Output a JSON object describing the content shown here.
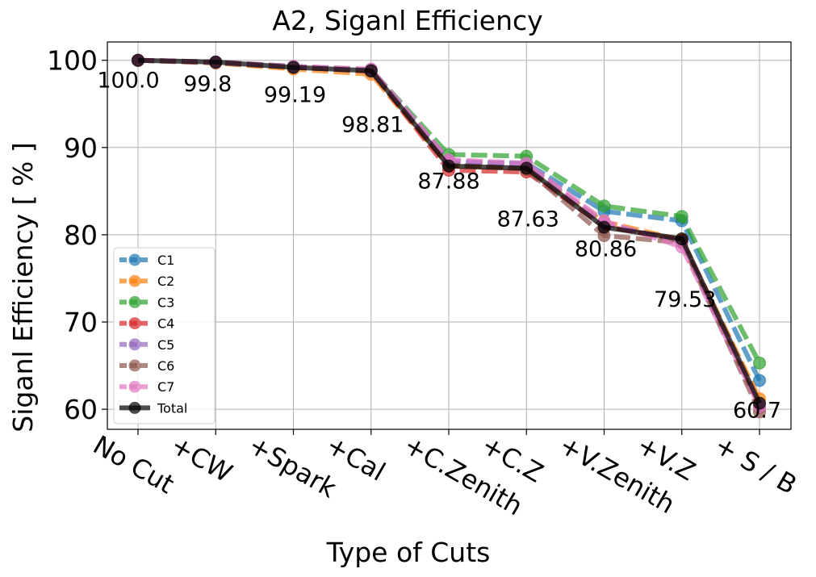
{
  "chart_data": {
    "type": "line",
    "title": "A2, Siganl Efficiency",
    "xlabel": "Type of Cuts",
    "ylabel": "Siganl Efficiency [ % ]",
    "categories": [
      "No Cut",
      "+CW",
      "+Spark",
      "+Cal",
      "+C.Zenith",
      "+C.Z",
      "+V.Zenith",
      "+V.Z",
      "+ S / B"
    ],
    "ylim": [
      57.7,
      102.1
    ],
    "yticks": [
      60,
      70,
      80,
      90,
      100
    ],
    "grid": true,
    "legend_position": "center-left",
    "series": [
      {
        "name": "C1",
        "color": "#1f77b4",
        "style": "dashed",
        "values": [
          100,
          99.8,
          99.2,
          98.8,
          88.3,
          88.2,
          82.7,
          81.6,
          63.3
        ]
      },
      {
        "name": "C2",
        "color": "#ff7f0e",
        "style": "dashed",
        "values": [
          100,
          99.7,
          99.0,
          98.4,
          87.9,
          87.6,
          81.5,
          79.4,
          61.2
        ]
      },
      {
        "name": "C3",
        "color": "#2ca02c",
        "style": "dashed",
        "values": [
          100,
          99.8,
          99.3,
          98.9,
          89.2,
          89.0,
          83.3,
          82.1,
          65.3
        ]
      },
      {
        "name": "C4",
        "color": "#d62728",
        "style": "dashed",
        "values": [
          100,
          99.8,
          99.2,
          98.8,
          87.4,
          87.2,
          81.0,
          79.3,
          60.2
        ]
      },
      {
        "name": "C5",
        "color": "#9467bd",
        "style": "dashed",
        "values": [
          100,
          99.8,
          99.3,
          98.9,
          88.5,
          88.0,
          81.3,
          79.2,
          60.4
        ]
      },
      {
        "name": "C6",
        "color": "#8c564b",
        "style": "dashed",
        "values": [
          100,
          99.7,
          99.2,
          98.7,
          88.0,
          87.5,
          79.9,
          79.1,
          59.7
        ]
      },
      {
        "name": "C7",
        "color": "#e377c2",
        "style": "dashed",
        "values": [
          100,
          99.8,
          99.3,
          99.0,
          88.6,
          88.2,
          81.6,
          78.6,
          60.3
        ]
      },
      {
        "name": "Total",
        "color": "#000000",
        "style": "solid",
        "values": [
          100.0,
          99.8,
          99.19,
          98.81,
          87.88,
          87.63,
          80.86,
          79.53,
          60.7
        ]
      }
    ],
    "annotations": [
      "100.0",
      "99.8",
      "99.19",
      "98.81",
      "87.88",
      "87.63",
      "80.86",
      "79.53",
      "60.7"
    ]
  }
}
